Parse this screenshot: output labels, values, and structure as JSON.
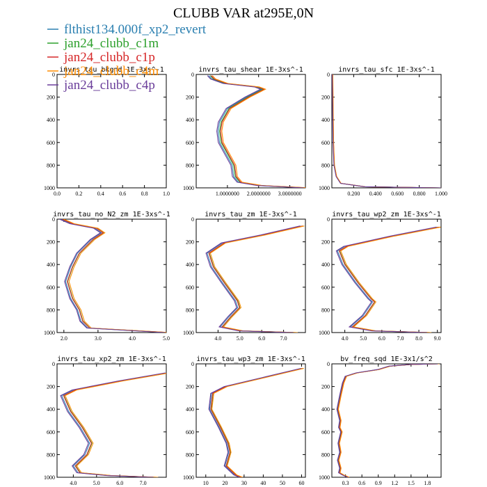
{
  "title": "CLUBB VAR at295E,0N",
  "legend": [
    {
      "name": "flthist134.000f_xp2_revert",
      "color": "#2a7fb0"
    },
    {
      "name": "jan24_clubb_c1m",
      "color": "#2ca02c"
    },
    {
      "name": "jan24_clubb_c1p",
      "color": "#d62728"
    },
    {
      "name": "jan24_clubb_c4m",
      "color": "#ff8c00"
    },
    {
      "name": "jan24_clubb_c4p",
      "color": "#6a3d9a"
    }
  ],
  "chart_data": [
    {
      "type": "line",
      "title": "invrs_tau_bkgnd  1E-3xs^-1",
      "xlim": [
        0,
        1
      ],
      "ylim": [
        1000,
        0
      ],
      "xticks": [
        "0.0",
        "0.2",
        "0.4",
        "0.6",
        "0.8",
        "1.0"
      ],
      "yticks": [
        "0",
        "200",
        "400",
        "600",
        "800",
        "1000"
      ],
      "series": []
    },
    {
      "type": "line",
      "title": "invrs_tau_shear  1E-3xs^-1",
      "xlim": [
        0,
        3.5
      ],
      "ylim": [
        1000,
        0
      ],
      "xticks": [
        "1.0000000",
        "2.0000000",
        "3.0000000"
      ],
      "yticks": [
        "0",
        "200",
        "400",
        "600",
        "800",
        "1000"
      ],
      "profile": [
        [
          0.4,
          10
        ],
        [
          0.5,
          40
        ],
        [
          0.9,
          80
        ],
        [
          1.9,
          110
        ],
        [
          2.1,
          130
        ],
        [
          1.6,
          200
        ],
        [
          1.0,
          300
        ],
        [
          0.75,
          420
        ],
        [
          0.7,
          500
        ],
        [
          0.75,
          600
        ],
        [
          0.95,
          700
        ],
        [
          1.15,
          800
        ],
        [
          1.2,
          900
        ],
        [
          1.35,
          950
        ],
        [
          2.0,
          980
        ],
        [
          3.5,
          1000
        ]
      ],
      "offsets": [
        0,
        0.05,
        0.08,
        0.12,
        -0.04
      ]
    },
    {
      "type": "line",
      "title": "invrs_tau_sfc  1E-3xs^-1",
      "xlim": [
        0,
        1
      ],
      "ylim": [
        1000,
        0
      ],
      "xticks": [
        "0.200",
        "0.400",
        "0.600",
        "0.800",
        "1.000"
      ],
      "yticks": [
        "0",
        "200",
        "400",
        "600",
        "800",
        "1000"
      ],
      "profile": [
        [
          0.005,
          0
        ],
        [
          0.008,
          300
        ],
        [
          0.012,
          600
        ],
        [
          0.02,
          800
        ],
        [
          0.04,
          900
        ],
        [
          0.08,
          960
        ],
        [
          0.3,
          990
        ],
        [
          1.0,
          1000
        ]
      ],
      "offsets": [
        0,
        0.002,
        0.003,
        0.004,
        -0.001
      ]
    },
    {
      "type": "line",
      "title": "invrs_tau_no_N2_zm  1E-3xs^-1",
      "xlim": [
        1.8,
        5
      ],
      "ylim": [
        1000,
        0
      ],
      "xticks": [
        "2.0",
        "3.0",
        "4.0",
        "5.0"
      ],
      "yticks": [
        "0",
        "200",
        "400",
        "600",
        "800",
        "1000"
      ],
      "profile": [
        [
          1.9,
          0
        ],
        [
          2.2,
          40
        ],
        [
          2.9,
          80
        ],
        [
          3.1,
          120
        ],
        [
          2.8,
          180
        ],
        [
          2.4,
          300
        ],
        [
          2.2,
          420
        ],
        [
          2.05,
          550
        ],
        [
          2.2,
          700
        ],
        [
          2.4,
          800
        ],
        [
          2.5,
          900
        ],
        [
          2.7,
          960
        ],
        [
          5.0,
          1000
        ]
      ],
      "offsets": [
        0,
        0.06,
        0.05,
        0.1,
        -0.03
      ]
    },
    {
      "type": "line",
      "title": "invrs_tau_zm  1E-3xs^-1",
      "xlim": [
        3,
        8
      ],
      "ylim": [
        1000,
        0
      ],
      "xticks": [
        "4.0",
        "5.0",
        "6.0",
        "7.0"
      ],
      "yticks": [
        "0",
        "200",
        "400",
        "600",
        "800",
        "1000"
      ],
      "profile": [
        [
          7.8,
          60
        ],
        [
          6.0,
          140
        ],
        [
          4.2,
          210
        ],
        [
          3.5,
          300
        ],
        [
          3.7,
          420
        ],
        [
          4.2,
          560
        ],
        [
          4.8,
          720
        ],
        [
          4.9,
          780
        ],
        [
          4.5,
          860
        ],
        [
          4.1,
          950
        ],
        [
          5.0,
          985
        ],
        [
          7.5,
          1000
        ]
      ],
      "offsets": [
        0,
        0.1,
        0.08,
        0.15,
        -0.05
      ]
    },
    {
      "type": "line",
      "title": "invrs_tau_wp2_zm  1E-3xs^-1",
      "xlim": [
        3.3,
        9.2
      ],
      "ylim": [
        1000,
        0
      ],
      "xticks": [
        "4.0",
        "5.0",
        "6.0",
        "7.0",
        "8.0",
        "9.0"
      ],
      "yticks": [
        "0",
        "200",
        "400",
        "600",
        "800",
        "1000"
      ],
      "profile": [
        [
          9.0,
          70
        ],
        [
          6.5,
          150
        ],
        [
          4.0,
          240
        ],
        [
          3.6,
          280
        ],
        [
          3.9,
          400
        ],
        [
          4.6,
          560
        ],
        [
          5.3,
          700
        ],
        [
          5.5,
          730
        ],
        [
          5.0,
          850
        ],
        [
          4.3,
          950
        ],
        [
          5.5,
          985
        ],
        [
          8.5,
          1000
        ]
      ],
      "offsets": [
        0,
        0.12,
        0.1,
        0.18,
        -0.06
      ]
    },
    {
      "type": "line",
      "title": "invrs_tau_xp2_zm  1E-3xs^-1",
      "xlim": [
        3.3,
        8
      ],
      "ylim": [
        1000,
        0
      ],
      "xticks": [
        "4.0",
        "5.0",
        "6.0",
        "7.0"
      ],
      "yticks": [
        "0",
        "200",
        "400",
        "600",
        "800",
        "1000"
      ],
      "profile": [
        [
          8.0,
          80
        ],
        [
          6.0,
          150
        ],
        [
          4.0,
          230
        ],
        [
          3.5,
          280
        ],
        [
          3.8,
          420
        ],
        [
          4.3,
          560
        ],
        [
          4.7,
          700
        ],
        [
          4.5,
          800
        ],
        [
          4.0,
          900
        ],
        [
          4.2,
          960
        ],
        [
          5.5,
          985
        ],
        [
          7.5,
          1000
        ]
      ],
      "offsets": [
        0,
        0.1,
        0.08,
        0.15,
        -0.05
      ]
    },
    {
      "type": "line",
      "title": "invrs_tau_wp3_zm  1E-3xs^-1",
      "xlim": [
        5,
        62
      ],
      "ylim": [
        1000,
        0
      ],
      "xticks": [
        "10",
        "20",
        "30",
        "40",
        "50",
        "60"
      ],
      "yticks": [
        "0",
        "200",
        "400",
        "600",
        "800",
        "1000"
      ],
      "profile": [
        [
          60,
          40
        ],
        [
          40,
          120
        ],
        [
          20,
          200
        ],
        [
          13,
          260
        ],
        [
          12,
          400
        ],
        [
          17,
          560
        ],
        [
          21,
          700
        ],
        [
          22,
          780
        ],
        [
          20,
          900
        ],
        [
          25,
          980
        ],
        [
          28,
          1000
        ]
      ],
      "offsets": [
        0,
        0.8,
        0.6,
        1.2,
        -0.4
      ]
    },
    {
      "type": "line",
      "title": "bv_freq_sqd  1E-3x1/s^2",
      "xlim": [
        0.05,
        2.05
      ],
      "ylim": [
        1000,
        0
      ],
      "xticks": [
        "0.3",
        "0.6",
        "0.9",
        "1.2",
        "1.5",
        "1.8"
      ],
      "yticks": [
        "0",
        "200",
        "400",
        "600",
        "800",
        "1000"
      ],
      "profile": [
        [
          2.0,
          0
        ],
        [
          1.5,
          5
        ],
        [
          1.1,
          20
        ],
        [
          0.9,
          50
        ],
        [
          0.5,
          80
        ],
        [
          0.3,
          110
        ],
        [
          0.25,
          170
        ],
        [
          0.2,
          280
        ],
        [
          0.15,
          400
        ],
        [
          0.2,
          500
        ],
        [
          0.18,
          560
        ],
        [
          0.22,
          600
        ],
        [
          0.17,
          700
        ],
        [
          0.2,
          780
        ],
        [
          0.16,
          850
        ],
        [
          0.2,
          920
        ],
        [
          0.18,
          960
        ],
        [
          0.25,
          980
        ],
        [
          0.35,
          1000
        ]
      ],
      "offsets": [
        0,
        0.01,
        0.012,
        0.02,
        -0.008
      ]
    }
  ]
}
